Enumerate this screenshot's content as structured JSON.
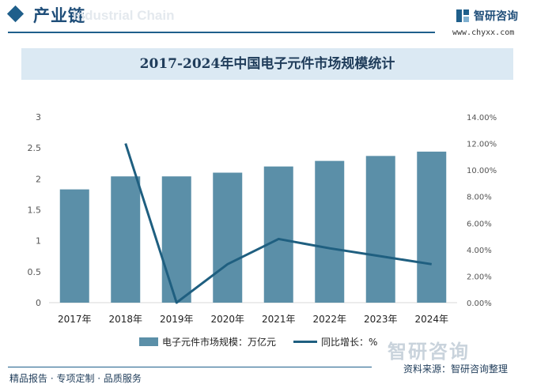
{
  "header": {
    "section_title": "产业链",
    "watermark_text": "Industrial Chain",
    "brand_name": "智研咨询",
    "site": "www.chyxx.com"
  },
  "chart_data": {
    "type": "bar",
    "title": "2017-2024年中国电子元件市场规模统计",
    "categories": [
      "2017年",
      "2018年",
      "2019年",
      "2020年",
      "2021年",
      "2022年",
      "2023年",
      "2024年"
    ],
    "series": [
      {
        "name": "电子元件市场规模：万亿元",
        "type": "bar",
        "axis": "left",
        "values": [
          1.83,
          2.04,
          2.04,
          2.1,
          2.2,
          2.29,
          2.37,
          2.44
        ]
      },
      {
        "name": "同比增长：%",
        "type": "line",
        "axis": "right",
        "values": [
          null,
          12.0,
          0.0,
          2.9,
          4.8,
          4.1,
          3.5,
          2.9
        ]
      }
    ],
    "y_left": {
      "min": 0,
      "max": 3,
      "ticks": [
        "0",
        "0.5",
        "1",
        "1.5",
        "2",
        "2.5",
        "3"
      ]
    },
    "y_right": {
      "min": 0,
      "max": 14,
      "ticks": [
        "0.00%",
        "2.00%",
        "4.00%",
        "6.00%",
        "8.00%",
        "10.00%",
        "12.00%",
        "14.00%"
      ]
    },
    "grid": false,
    "legend_position": "bottom",
    "colors": {
      "bar": "#5b8fa8",
      "line": "#1f5f80"
    }
  },
  "footer": {
    "tagline": "精品报告 · 专项定制 · 品质服务",
    "source": "资料来源：智研咨询整理",
    "watermark": "智研咨询"
  }
}
